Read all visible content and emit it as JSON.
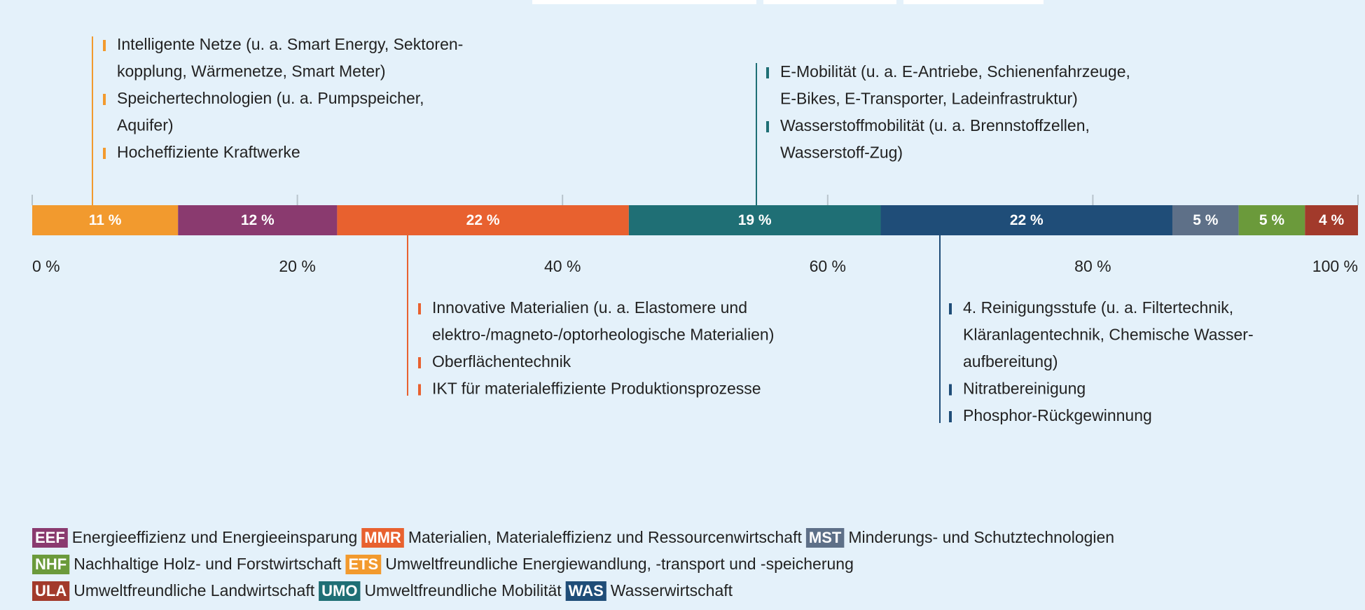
{
  "chart_data": {
    "type": "stacked-bar-100",
    "values": [
      11,
      12,
      22,
      19,
      22,
      5,
      5,
      4
    ],
    "value_labels": [
      "11 %",
      "12 %",
      "22 %",
      "19 %",
      "22 %",
      "5 %",
      "5 %",
      "4 %"
    ],
    "colors": [
      "#f29a2e",
      "#8a3a6f",
      "#e8612f",
      "#1f6f75",
      "#1f4d78",
      "#5e7088",
      "#6b9a3b",
      "#a23a2b"
    ],
    "xlim": [
      0,
      100
    ],
    "xticks": [
      {
        "value": 0,
        "label": "0 %"
      },
      {
        "value": 20,
        "label": "20 %"
      },
      {
        "value": 40,
        "label": "40 %"
      },
      {
        "value": 60,
        "label": "60 %"
      },
      {
        "value": 80,
        "label": "80 %"
      },
      {
        "value": 100,
        "label": "100 %"
      }
    ],
    "annotations": [
      {
        "color": "#f29a2e",
        "items": [
          [
            "Intelligente Netze (u. a. Smart Energy, Sektoren-",
            "kopplung, Wärmenetze, Smart Meter)"
          ],
          [
            "Speichertechnologien (u. a. Pumpspeicher,",
            "Aquifer)"
          ],
          [
            "Hocheffiziente Kraftwerke"
          ]
        ]
      },
      {
        "color": "#1f6f75",
        "items": [
          [
            "E-Mobilität (u. a. E-Antriebe, Schienenfahrzeuge,",
            "E-Bikes, E-Transporter, Ladeinfrastruktur)"
          ],
          [
            "Wasserstoffmobilität (u. a. Brennstoffzellen,",
            "Wasserstoff-Zug)"
          ]
        ]
      },
      {
        "color": "#e8612f",
        "items": [
          [
            "Innovative Materialien (u. a. Elastomere und",
            "elektro-/magneto-/optorheologische Materialien)"
          ],
          [
            "Oberflächentechnik"
          ],
          [
            "IKT für materialeffiziente Produktionsprozesse"
          ]
        ]
      },
      {
        "color": "#1f4d78",
        "items": [
          [
            "4. Reinigungsstufe (u. a. Filtertechnik,",
            "Kläranlagentechnik, Chemische Wasser-",
            "aufbereitung)"
          ],
          [
            "Nitratbereinigung"
          ],
          [
            "Phosphor-Rückgewinnung"
          ]
        ]
      }
    ],
    "legend": [
      [
        {
          "abbr": "EEF",
          "label": "Energieeffizienz und Energieeinsparung",
          "color": "#8a3a6f"
        },
        {
          "abbr": "MMR",
          "label": "Materialien, Materialeffizienz und Ressourcenwirtschaft",
          "color": "#e8612f"
        },
        {
          "abbr": "MST",
          "label": "Minderungs- und Schutztechnologien",
          "color": "#5e7088"
        }
      ],
      [
        {
          "abbr": "NHF",
          "label": "Nachhaltige Holz- und Forstwirtschaft",
          "color": "#6b9a3b"
        },
        {
          "abbr": "ETS",
          "label": "Umweltfreundliche Energiewandlung, -transport und -speicherung",
          "color": "#f29a2e"
        }
      ],
      [
        {
          "abbr": "ULA",
          "label": "Umweltfreundliche Landwirtschaft",
          "color": "#a23a2b"
        },
        {
          "abbr": "UMO",
          "label": "Umweltfreundliche Mobilität",
          "color": "#1f6f75"
        },
        {
          "abbr": "WAS",
          "label": "Wasserwirtschaft",
          "color": "#1f4d78"
        }
      ]
    ]
  }
}
